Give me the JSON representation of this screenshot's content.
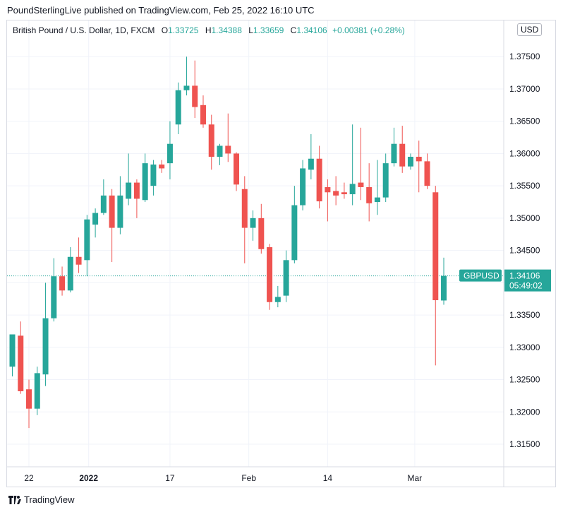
{
  "header": {
    "text": "PoundSterlingLive published on TradingView.com, Feb 25, 2022 16:10 UTC"
  },
  "legend": {
    "symbol": "British Pound / U.S. Dollar, 1D, FXCM",
    "open_label": "O",
    "open": "1.33725",
    "high_label": "H",
    "high": "1.34388",
    "low_label": "L",
    "low": "1.33659",
    "close_label": "C",
    "close": "1.34106",
    "change": "+0.00381 (+0.28%)"
  },
  "currency_button": "USD",
  "price_tag": {
    "symbol": "GBPUSD",
    "price": "1.34106",
    "countdown": "05:49:02"
  },
  "footer": {
    "brand": "TradingView"
  },
  "colors": {
    "up": "#26a69a",
    "down": "#ef5350",
    "grid": "#f0f3fa"
  },
  "chart_data": {
    "type": "candlestick",
    "ylim": [
      1.3115,
      1.3806
    ],
    "y_ticks": [
      "1.31500",
      "1.32000",
      "1.32500",
      "1.33000",
      "1.33500",
      "1.34000",
      "1.34500",
      "1.35000",
      "1.35500",
      "1.36000",
      "1.36500",
      "1.37000",
      "1.37500"
    ],
    "x_tick_labels": [
      {
        "label": "22",
        "index": 2
      },
      {
        "label": "2022",
        "index": 9.2,
        "bold": true
      },
      {
        "label": "17",
        "index": 19
      },
      {
        "label": "Feb",
        "index": 28.5
      },
      {
        "label": "14",
        "index": 38
      },
      {
        "label": "Mar",
        "index": 48.5
      }
    ],
    "current_price": 1.34106,
    "candles": [
      {
        "o": 1.327,
        "h": 1.3315,
        "l": 1.3255,
        "c": 1.332
      },
      {
        "o": 1.3318,
        "h": 1.334,
        "l": 1.3228,
        "c": 1.3232
      },
      {
        "o": 1.3235,
        "h": 1.325,
        "l": 1.3175,
        "c": 1.3205
      },
      {
        "o": 1.3205,
        "h": 1.327,
        "l": 1.3195,
        "c": 1.326
      },
      {
        "o": 1.3258,
        "h": 1.34,
        "l": 1.324,
        "c": 1.3345
      },
      {
        "o": 1.3345,
        "h": 1.3438,
        "l": 1.334,
        "c": 1.341
      },
      {
        "o": 1.341,
        "h": 1.3425,
        "l": 1.338,
        "c": 1.3388
      },
      {
        "o": 1.3388,
        "h": 1.3455,
        "l": 1.3385,
        "c": 1.344
      },
      {
        "o": 1.344,
        "h": 1.347,
        "l": 1.3415,
        "c": 1.3428
      },
      {
        "o": 1.3435,
        "h": 1.3505,
        "l": 1.341,
        "c": 1.3498
      },
      {
        "o": 1.349,
        "h": 1.3515,
        "l": 1.347,
        "c": 1.3508
      },
      {
        "o": 1.3508,
        "h": 1.356,
        "l": 1.3505,
        "c": 1.3535
      },
      {
        "o": 1.3535,
        "h": 1.3545,
        "l": 1.3432,
        "c": 1.3485
      },
      {
        "o": 1.3485,
        "h": 1.3565,
        "l": 1.3475,
        "c": 1.3535
      },
      {
        "o": 1.353,
        "h": 1.36,
        "l": 1.352,
        "c": 1.3555
      },
      {
        "o": 1.3555,
        "h": 1.356,
        "l": 1.35,
        "c": 1.353
      },
      {
        "o": 1.3528,
        "h": 1.36,
        "l": 1.3525,
        "c": 1.3585
      },
      {
        "o": 1.355,
        "h": 1.359,
        "l": 1.3535,
        "c": 1.3583
      },
      {
        "o": 1.3583,
        "h": 1.359,
        "l": 1.357,
        "c": 1.3577
      },
      {
        "o": 1.3585,
        "h": 1.365,
        "l": 1.356,
        "c": 1.3615
      },
      {
        "o": 1.3645,
        "h": 1.371,
        "l": 1.363,
        "c": 1.3698
      },
      {
        "o": 1.3698,
        "h": 1.375,
        "l": 1.369,
        "c": 1.3705
      },
      {
        "o": 1.3705,
        "h": 1.3744,
        "l": 1.3655,
        "c": 1.3672
      },
      {
        "o": 1.3675,
        "h": 1.369,
        "l": 1.364,
        "c": 1.3645
      },
      {
        "o": 1.3645,
        "h": 1.366,
        "l": 1.3575,
        "c": 1.3595
      },
      {
        "o": 1.3595,
        "h": 1.3615,
        "l": 1.3582,
        "c": 1.3612
      },
      {
        "o": 1.3612,
        "h": 1.3662,
        "l": 1.3587,
        "c": 1.36
      },
      {
        "o": 1.36,
        "h": 1.3602,
        "l": 1.3542,
        "c": 1.3552
      },
      {
        "o": 1.3545,
        "h": 1.3565,
        "l": 1.343,
        "c": 1.3485
      },
      {
        "o": 1.3485,
        "h": 1.3512,
        "l": 1.3465,
        "c": 1.35
      },
      {
        "o": 1.35,
        "h": 1.3522,
        "l": 1.3445,
        "c": 1.3452
      },
      {
        "o": 1.3455,
        "h": 1.346,
        "l": 1.3358,
        "c": 1.337
      },
      {
        "o": 1.337,
        "h": 1.3395,
        "l": 1.3362,
        "c": 1.3378
      },
      {
        "o": 1.338,
        "h": 1.345,
        "l": 1.337,
        "c": 1.3435
      },
      {
        "o": 1.3435,
        "h": 1.355,
        "l": 1.343,
        "c": 1.352
      },
      {
        "o": 1.352,
        "h": 1.359,
        "l": 1.3512,
        "c": 1.3577
      },
      {
        "o": 1.3575,
        "h": 1.363,
        "l": 1.356,
        "c": 1.3592
      },
      {
        "o": 1.3592,
        "h": 1.3612,
        "l": 1.3515,
        "c": 1.3526
      },
      {
        "o": 1.3548,
        "h": 1.356,
        "l": 1.3495,
        "c": 1.354
      },
      {
        "o": 1.3542,
        "h": 1.3565,
        "l": 1.352,
        "c": 1.3535
      },
      {
        "o": 1.354,
        "h": 1.3555,
        "l": 1.353,
        "c": 1.3537
      },
      {
        "o": 1.3537,
        "h": 1.3645,
        "l": 1.352,
        "c": 1.3553
      },
      {
        "o": 1.3555,
        "h": 1.364,
        "l": 1.3528,
        "c": 1.3548
      },
      {
        "o": 1.3548,
        "h": 1.3585,
        "l": 1.3495,
        "c": 1.3523
      },
      {
        "o": 1.3525,
        "h": 1.359,
        "l": 1.3505,
        "c": 1.3532
      },
      {
        "o": 1.3532,
        "h": 1.36,
        "l": 1.3525,
        "c": 1.3585
      },
      {
        "o": 1.3585,
        "h": 1.364,
        "l": 1.358,
        "c": 1.3615
      },
      {
        "o": 1.3615,
        "h": 1.3643,
        "l": 1.357,
        "c": 1.358
      },
      {
        "o": 1.358,
        "h": 1.36,
        "l": 1.3575,
        "c": 1.3595
      },
      {
        "o": 1.3595,
        "h": 1.362,
        "l": 1.354,
        "c": 1.3588
      },
      {
        "o": 1.3588,
        "h": 1.36,
        "l": 1.3545,
        "c": 1.355
      },
      {
        "o": 1.354,
        "h": 1.355,
        "l": 1.3272,
        "c": 1.3373
      },
      {
        "o": 1.33725,
        "h": 1.34388,
        "l": 1.33659,
        "c": 1.34106
      }
    ]
  }
}
